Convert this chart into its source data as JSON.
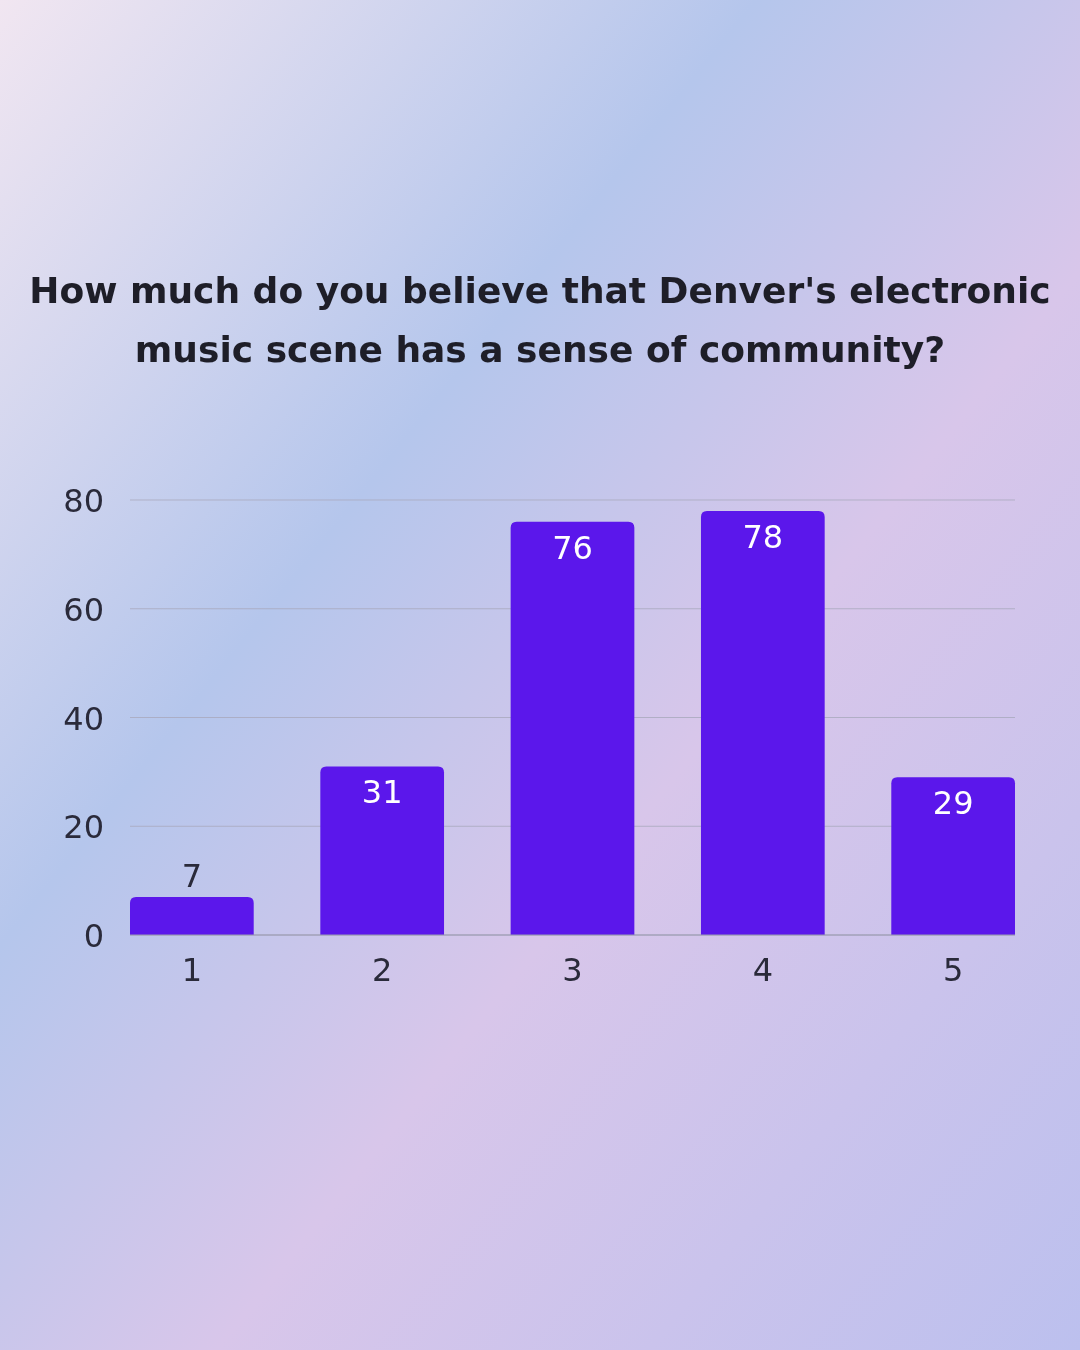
{
  "chart_data": {
    "type": "bar",
    "title": "How much do you believe that Denver's electronic music scene has a sense of community?",
    "categories": [
      "1",
      "2",
      "3",
      "4",
      "5"
    ],
    "values": [
      7,
      31,
      76,
      78,
      29
    ],
    "color": "#5b17eb",
    "ylim": [
      0,
      80
    ],
    "yticks": [
      0,
      20,
      40,
      60,
      80
    ],
    "grid": "y",
    "data_labels": true
  }
}
